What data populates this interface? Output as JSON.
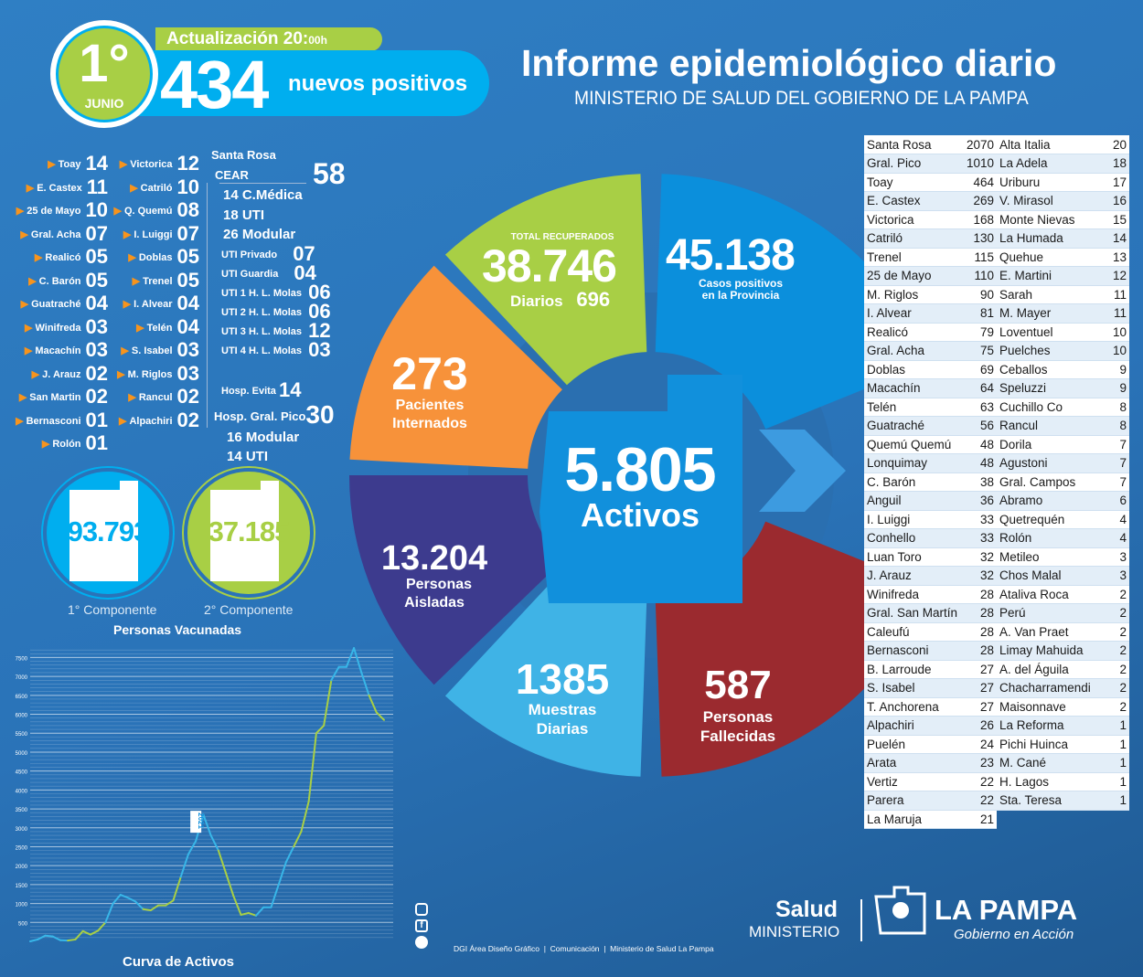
{
  "header": {
    "day": "1°",
    "month": "JUNIO",
    "update": "Actualización 20:",
    "update_suffix": "00h",
    "new_count": "434",
    "new_label": "nuevos positivos",
    "title": "Informe epidemiológico diario",
    "subtitle": "MINISTERIO DE SALUD DEL GOBIERNO DE LA PAMPA"
  },
  "districts_col1": [
    {
      "name": "Toay",
      "n": "14"
    },
    {
      "name": "E. Castex",
      "n": "11"
    },
    {
      "name": "25 de Mayo",
      "n": "10"
    },
    {
      "name": "Gral. Acha",
      "n": "07"
    },
    {
      "name": "Realicó",
      "n": "05"
    },
    {
      "name": "C. Barón",
      "n": "05"
    },
    {
      "name": "Guatraché",
      "n": "04"
    },
    {
      "name": "Winifreda",
      "n": "03"
    },
    {
      "name": "Macachín",
      "n": "03"
    },
    {
      "name": "J. Arauz",
      "n": "02"
    },
    {
      "name": "San Martin",
      "n": "02"
    },
    {
      "name": "Bernasconi",
      "n": "01"
    },
    {
      "name": "Rolón",
      "n": "01"
    }
  ],
  "districts_col2": [
    {
      "name": "Victorica",
      "n": "12"
    },
    {
      "name": "Catriló",
      "n": "10"
    },
    {
      "name": "Q. Quemú",
      "n": "08"
    },
    {
      "name": "I. Luiggi",
      "n": "07"
    },
    {
      "name": "Doblas",
      "n": "05"
    },
    {
      "name": "Trenel",
      "n": "05"
    },
    {
      "name": "I. Alvear",
      "n": "04"
    },
    {
      "name": "Telén",
      "n": "04"
    },
    {
      "name": "S. Isabel",
      "n": "03"
    },
    {
      "name": "M. Riglos",
      "n": "03"
    },
    {
      "name": "Rancul",
      "n": "02"
    },
    {
      "name": "Alpachiri",
      "n": "02"
    }
  ],
  "santa_rosa": {
    "title": "Santa Rosa",
    "cear": "CEAR",
    "cear_total": "58",
    "cear_items": [
      "14 C.Médica",
      "18 UTI",
      "26 Modular"
    ],
    "uti": [
      {
        "name": "UTI Privado",
        "n": "07"
      },
      {
        "name": "UTI Guardia",
        "n": "04"
      },
      {
        "name": "UTI 1 H. L. Molas",
        "n": "06"
      },
      {
        "name": "UTI 2 H. L. Molas",
        "n": "06"
      },
      {
        "name": "UTI 3 H. L. Molas",
        "n": "12"
      },
      {
        "name": "UTI 4 H. L. Molas",
        "n": "03"
      }
    ],
    "evita": "Hosp. Evita",
    "evita_n": "14",
    "pico": "Hosp. Gral. Pico",
    "pico_n": "30",
    "pico_items": [
      "16 Modular",
      "14 UTI"
    ]
  },
  "vaccines": {
    "first": "93.793",
    "first_label": "1° Componente",
    "second": "37.185",
    "second_label": "2° Componente",
    "title": "Personas Vacunadas"
  },
  "stats": {
    "recovered_label": "TOTAL RECUPERADOS",
    "recovered": "38.746",
    "daily_label": "Diarios",
    "daily": "696",
    "positives": "45.138",
    "positives_label1": "Casos positivos",
    "positives_label2": "en la Provincia",
    "hospitalized": "273",
    "hosp_l1": "Pacientes",
    "hosp_l2": "Internados",
    "active": "5.805",
    "active_label": "Activos",
    "isolated": "13.204",
    "iso_l1": "Personas",
    "iso_l2": "Aisladas",
    "samples": "1385",
    "samp_l1": "Muestras",
    "samp_l2": "Diarias",
    "deaths": "587",
    "death_l1": "Personas",
    "death_l2": "Fallecidas"
  },
  "colors": {
    "blue": "#00aeef",
    "green": "#a8cf45",
    "orange": "#f7923a",
    "purple": "#3d3b8e",
    "lightblue": "#3fb3e6",
    "red": "#9b2a2f",
    "positives": "#0b8fdc"
  },
  "table_left": [
    [
      "Santa Rosa",
      "2070"
    ],
    [
      "Gral. Pico",
      "1010"
    ],
    [
      "Toay",
      "464"
    ],
    [
      "E. Castex",
      "269"
    ],
    [
      "Victorica",
      "168"
    ],
    [
      "Catriló",
      "130"
    ],
    [
      "Trenel",
      "115"
    ],
    [
      "25 de Mayo",
      "110"
    ],
    [
      "M. Riglos",
      "90"
    ],
    [
      "I. Alvear",
      "81"
    ],
    [
      "Realicó",
      "79"
    ],
    [
      "Gral. Acha",
      "75"
    ],
    [
      "Doblas",
      "69"
    ],
    [
      "Macachín",
      "64"
    ],
    [
      "Telén",
      "63"
    ],
    [
      "Guatraché",
      "56"
    ],
    [
      "Quemú Quemú",
      "48"
    ],
    [
      "Lonquimay",
      "48"
    ],
    [
      "C. Barón",
      "38"
    ],
    [
      "Anguil",
      "36"
    ],
    [
      "I. Luiggi",
      "33"
    ],
    [
      "Conhello",
      "33"
    ],
    [
      "Luan Toro",
      "32"
    ],
    [
      "J. Arauz",
      "32"
    ],
    [
      "Winifreda",
      "28"
    ],
    [
      "Gral. San Martín",
      "28"
    ],
    [
      "Caleufú",
      "28"
    ],
    [
      "Bernasconi",
      "28"
    ],
    [
      "B. Larroude",
      "27"
    ],
    [
      "S. Isabel",
      "27"
    ],
    [
      "T. Anchorena",
      "27"
    ],
    [
      "Alpachiri",
      "26"
    ],
    [
      "Puelén",
      "24"
    ],
    [
      "Arata",
      "23"
    ],
    [
      "Vertiz",
      "22"
    ],
    [
      "Parera",
      "22"
    ],
    [
      "La Maruja",
      "21"
    ]
  ],
  "table_right": [
    [
      "Alta Italia",
      "20"
    ],
    [
      "La Adela",
      "18"
    ],
    [
      "Uriburu",
      "17"
    ],
    [
      "V. Mirasol",
      "16"
    ],
    [
      "Monte Nievas",
      "15"
    ],
    [
      "La Humada",
      "14"
    ],
    [
      "Quehue",
      "13"
    ],
    [
      "E. Martini",
      "12"
    ],
    [
      "Sarah",
      "11"
    ],
    [
      "M. Mayer",
      "11"
    ],
    [
      "Loventuel",
      "10"
    ],
    [
      "Puelches",
      "10"
    ],
    [
      "Ceballos",
      "9"
    ],
    [
      "Speluzzi",
      "9"
    ],
    [
      "Cuchillo Co",
      "8"
    ],
    [
      "Rancul",
      "8"
    ],
    [
      "Dorila",
      "7"
    ],
    [
      "Agustoni",
      "7"
    ],
    [
      "Gral. Campos",
      "7"
    ],
    [
      "Abramo",
      "6"
    ],
    [
      "Quetrequén",
      "4"
    ],
    [
      "Rolón",
      "4"
    ],
    [
      "Metileo",
      "3"
    ],
    [
      "Chos Malal",
      "3"
    ],
    [
      "Ataliva Roca",
      "2"
    ],
    [
      "Perú",
      "2"
    ],
    [
      "A. Van Praet",
      "2"
    ],
    [
      "Limay Mahuida",
      "2"
    ],
    [
      "A. del Águila",
      "2"
    ],
    [
      "Chacharramendi",
      "2"
    ],
    [
      "Maisonnave",
      "2"
    ],
    [
      "La Reforma",
      "1"
    ],
    [
      "Pichi Huinca",
      "1"
    ],
    [
      "M. Cané",
      "1"
    ],
    [
      "H. Lagos",
      "1"
    ],
    [
      "Sta. Teresa",
      "1"
    ]
  ],
  "chart_data": {
    "type": "line",
    "title": "Curva de Activos",
    "yticks": [
      500,
      1000,
      1500,
      2000,
      2500,
      3000,
      3500,
      4000,
      4500,
      5000,
      5500,
      6000,
      6500,
      7000,
      7500
    ],
    "ylim": [
      0,
      7800
    ],
    "grid": true,
    "annotation": "2021",
    "colors": [
      "#38b6e8",
      "#a8cf45"
    ],
    "values": [
      0,
      50,
      150,
      130,
      30,
      20,
      50,
      270,
      180,
      280,
      500,
      1000,
      1230,
      1150,
      1050,
      850,
      820,
      950,
      950,
      1080,
      1700,
      2300,
      2650,
      3350,
      2800,
      2400,
      1800,
      1200,
      700,
      750,
      680,
      900,
      900,
      1500,
      2100,
      2500,
      2900,
      3700,
      5500,
      5700,
      6900,
      7250,
      7250,
      7750,
      7100,
      6500,
      6050,
      5850
    ]
  },
  "footer": {
    "credits": "DGI Área Diseño Gráfico  |  Comunicación  |  Ministerio de Salud La Pampa",
    "salud": "Salud",
    "ministerio": "MINISTERIO",
    "lapampa": "LA PAMPA",
    "gobierno": "Gobierno en Acción",
    "social": [
      "instagram-icon",
      "facebook-icon",
      "twitter-icon"
    ]
  }
}
